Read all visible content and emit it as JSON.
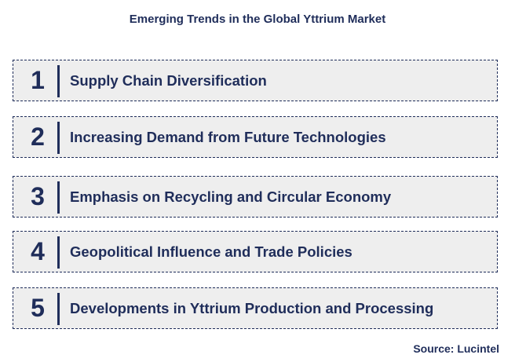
{
  "title": "Emerging Trends in the Global Yttrium Market",
  "trends": [
    {
      "number": "1",
      "label": "Supply Chain Diversification"
    },
    {
      "number": "2",
      "label": "Increasing Demand from Future Technologies"
    },
    {
      "number": "3",
      "label": "Emphasis on Recycling and Circular Economy"
    },
    {
      "number": "4",
      "label": "Geopolitical Influence and Trade Policies"
    },
    {
      "number": "5",
      "label": "Developments in Yttrium Production and Processing"
    }
  ],
  "source": "Source: Lucintel",
  "colors": {
    "text": "#1f2d5a",
    "box_fill": "#eeeeee",
    "background": "#ffffff"
  }
}
